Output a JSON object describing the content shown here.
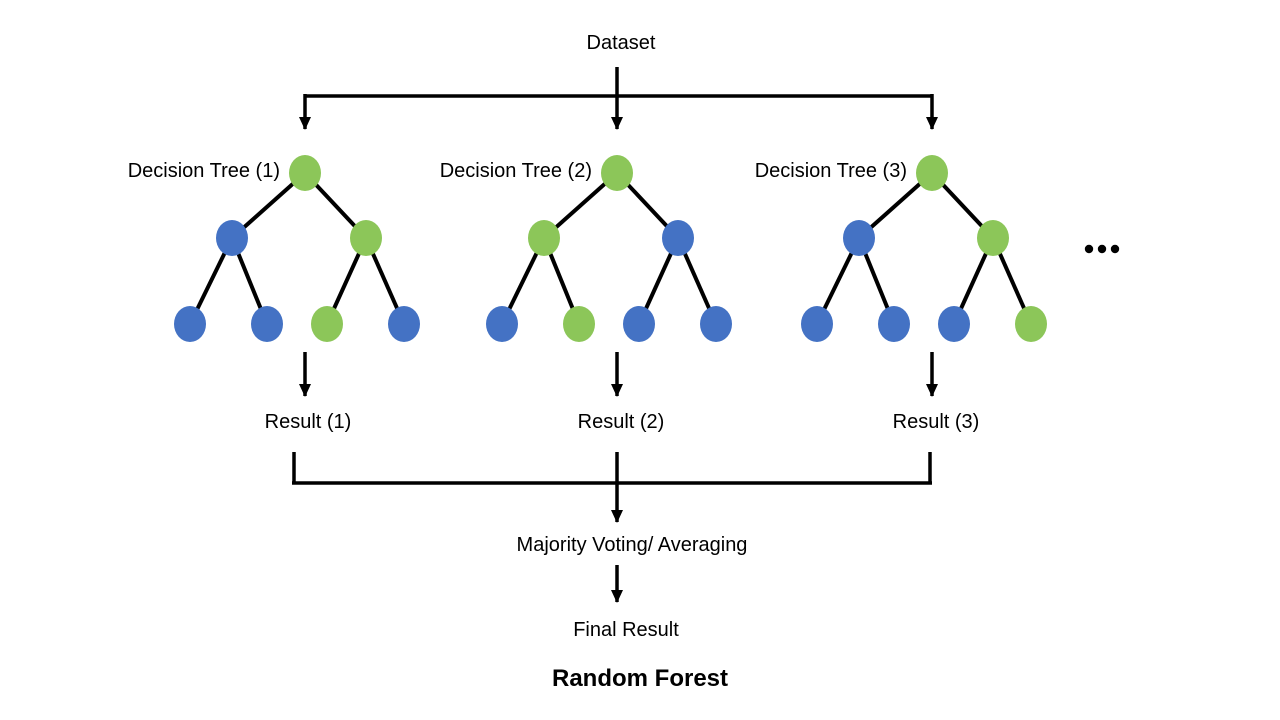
{
  "diagram": {
    "title": "Random Forest",
    "dataset_label": "Dataset",
    "aggregation_label": "Majority Voting/ Averaging",
    "final_result_label": "Final Result",
    "ellipsis": "...",
    "colors": {
      "node_green": "#8CC659",
      "node_blue": "#4472C4",
      "line": "#000000",
      "text": "#000000",
      "background": "#FFFFFF"
    },
    "trees": [
      {
        "label": "Decision Tree (1)",
        "result_label": "Result (1)",
        "nodes": {
          "root": "green",
          "internal": [
            "blue",
            "green"
          ],
          "leaves": [
            "blue",
            "blue",
            "green",
            "blue"
          ]
        }
      },
      {
        "label": "Decision Tree (2)",
        "result_label": "Result (2)",
        "nodes": {
          "root": "green",
          "internal": [
            "green",
            "blue"
          ],
          "leaves": [
            "blue",
            "green",
            "blue",
            "blue"
          ]
        }
      },
      {
        "label": "Decision Tree (3)",
        "result_label": "Result (3)",
        "nodes": {
          "root": "green",
          "internal": [
            "blue",
            "green"
          ],
          "leaves": [
            "blue",
            "blue",
            "blue",
            "green"
          ]
        }
      }
    ]
  }
}
